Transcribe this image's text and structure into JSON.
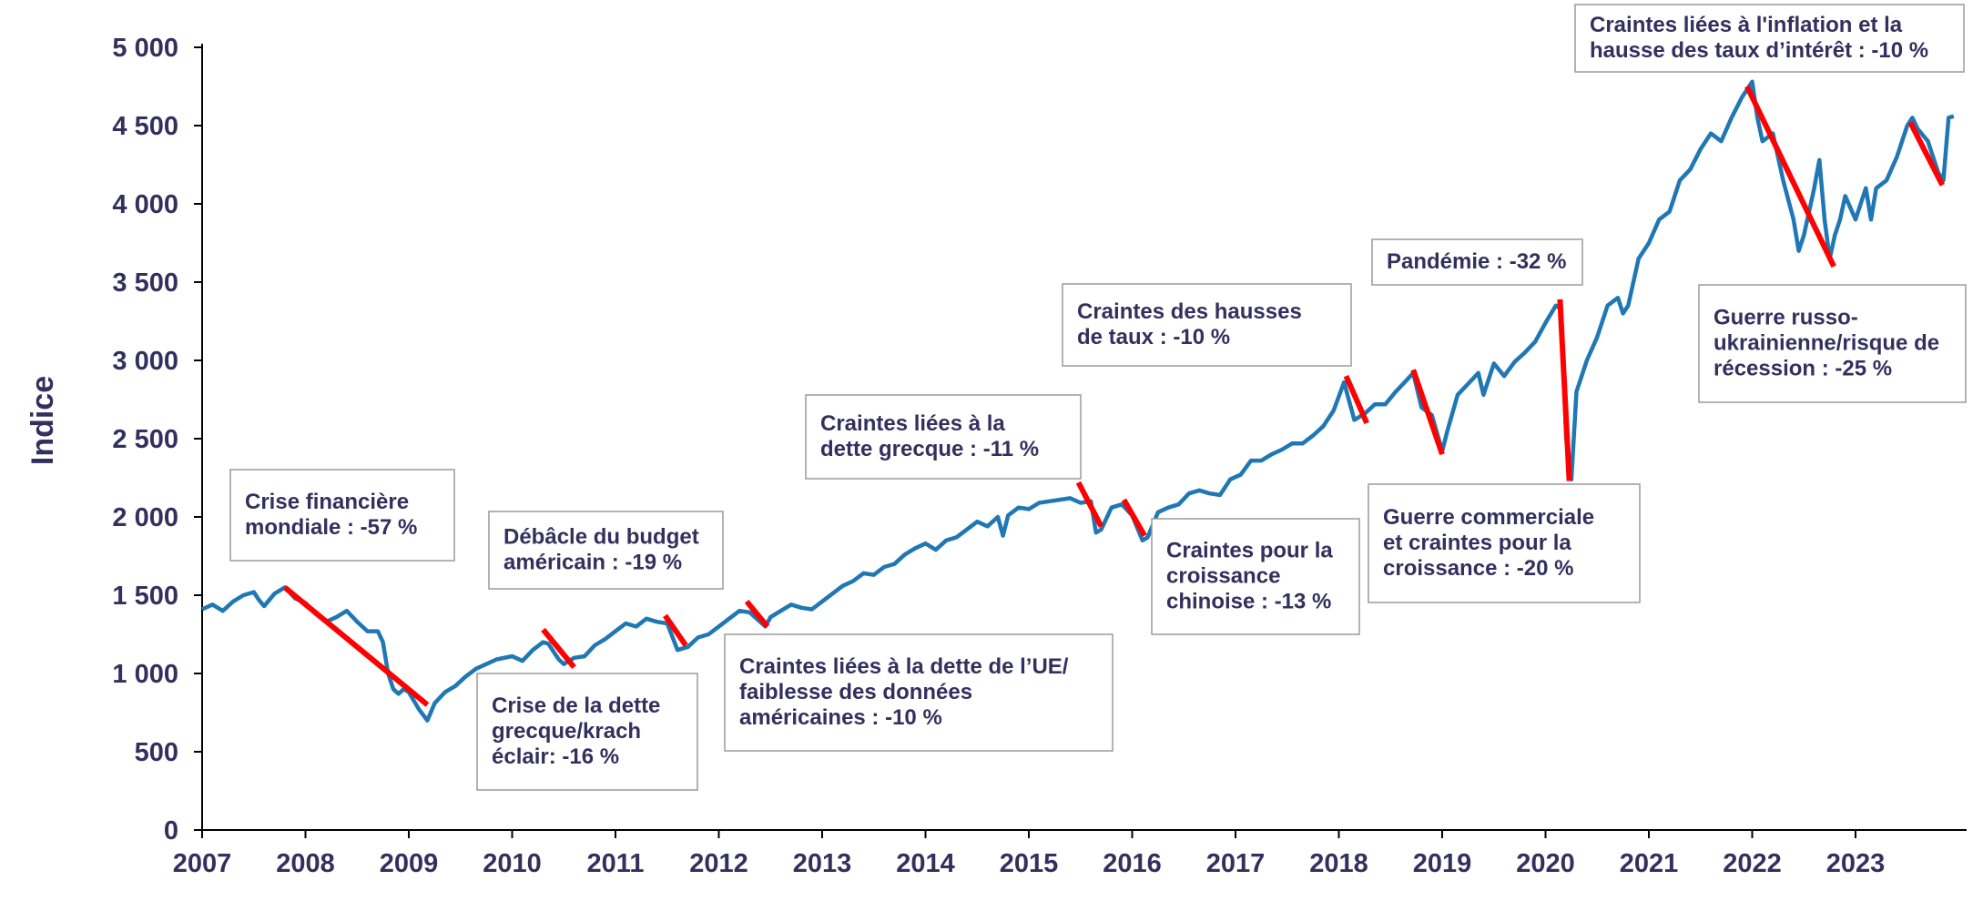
{
  "chart_data": {
    "type": "line",
    "ylabel": "Indice",
    "ylim": [
      0,
      5000
    ],
    "yticks": [
      0,
      500,
      1000,
      1500,
      2000,
      2500,
      3000,
      3500,
      4000,
      4500,
      5000
    ],
    "ytick_labels": [
      "0",
      "500",
      "1 000",
      "1 500",
      "2 000",
      "2 500",
      "3 000",
      "3 500",
      "4 000",
      "4 500",
      "5 000"
    ],
    "xlim": [
      2007.0,
      2023.95
    ],
    "xticks": [
      2007,
      2008,
      2009,
      2010,
      2011,
      2012,
      2013,
      2014,
      2015,
      2016,
      2017,
      2018,
      2019,
      2020,
      2021,
      2022,
      2023
    ],
    "xtick_labels": [
      "2007",
      "2008",
      "2009",
      "2010",
      "2011",
      "2012",
      "2013",
      "2014",
      "2015",
      "2016",
      "2017",
      "2018",
      "2019",
      "2020",
      "2021",
      "2022",
      "2023"
    ],
    "grid": false,
    "series": [
      {
        "color": "#1f77b4",
        "points": [
          [
            2007.0,
            1410
          ],
          [
            2007.1,
            1440
          ],
          [
            2007.2,
            1400
          ],
          [
            2007.3,
            1460
          ],
          [
            2007.4,
            1500
          ],
          [
            2007.5,
            1520
          ],
          [
            2007.55,
            1470
          ],
          [
            2007.6,
            1430
          ],
          [
            2007.7,
            1510
          ],
          [
            2007.8,
            1550
          ],
          [
            2007.9,
            1480
          ],
          [
            2008.0,
            1450
          ],
          [
            2008.1,
            1380
          ],
          [
            2008.2,
            1330
          ],
          [
            2008.3,
            1360
          ],
          [
            2008.4,
            1400
          ],
          [
            2008.5,
            1330
          ],
          [
            2008.6,
            1270
          ],
          [
            2008.7,
            1270
          ],
          [
            2008.75,
            1200
          ],
          [
            2008.8,
            1000
          ],
          [
            2008.85,
            900
          ],
          [
            2008.9,
            870
          ],
          [
            2008.95,
            900
          ],
          [
            2009.0,
            880
          ],
          [
            2009.1,
            770
          ],
          [
            2009.18,
            700
          ],
          [
            2009.25,
            810
          ],
          [
            2009.35,
            880
          ],
          [
            2009.45,
            920
          ],
          [
            2009.55,
            980
          ],
          [
            2009.65,
            1030
          ],
          [
            2009.75,
            1060
          ],
          [
            2009.85,
            1090
          ],
          [
            2010.0,
            1110
          ],
          [
            2010.1,
            1080
          ],
          [
            2010.2,
            1150
          ],
          [
            2010.3,
            1200
          ],
          [
            2010.35,
            1190
          ],
          [
            2010.45,
            1090
          ],
          [
            2010.5,
            1060
          ],
          [
            2010.6,
            1100
          ],
          [
            2010.7,
            1110
          ],
          [
            2010.8,
            1180
          ],
          [
            2010.9,
            1220
          ],
          [
            2011.0,
            1270
          ],
          [
            2011.1,
            1320
          ],
          [
            2011.2,
            1300
          ],
          [
            2011.3,
            1350
          ],
          [
            2011.4,
            1330
          ],
          [
            2011.5,
            1320
          ],
          [
            2011.6,
            1150
          ],
          [
            2011.7,
            1170
          ],
          [
            2011.8,
            1230
          ],
          [
            2011.9,
            1250
          ],
          [
            2012.0,
            1300
          ],
          [
            2012.1,
            1350
          ],
          [
            2012.2,
            1400
          ],
          [
            2012.3,
            1390
          ],
          [
            2012.4,
            1330
          ],
          [
            2012.45,
            1300
          ],
          [
            2012.5,
            1360
          ],
          [
            2012.6,
            1400
          ],
          [
            2012.7,
            1440
          ],
          [
            2012.8,
            1420
          ],
          [
            2012.9,
            1410
          ],
          [
            2013.0,
            1460
          ],
          [
            2013.1,
            1510
          ],
          [
            2013.2,
            1560
          ],
          [
            2013.3,
            1590
          ],
          [
            2013.4,
            1640
          ],
          [
            2013.5,
            1630
          ],
          [
            2013.6,
            1680
          ],
          [
            2013.7,
            1700
          ],
          [
            2013.8,
            1760
          ],
          [
            2013.9,
            1800
          ],
          [
            2014.0,
            1830
          ],
          [
            2014.1,
            1790
          ],
          [
            2014.2,
            1850
          ],
          [
            2014.3,
            1870
          ],
          [
            2014.4,
            1920
          ],
          [
            2014.5,
            1970
          ],
          [
            2014.6,
            1940
          ],
          [
            2014.7,
            2000
          ],
          [
            2014.75,
            1880
          ],
          [
            2014.8,
            2010
          ],
          [
            2014.9,
            2060
          ],
          [
            2015.0,
            2050
          ],
          [
            2015.1,
            2090
          ],
          [
            2015.2,
            2100
          ],
          [
            2015.3,
            2110
          ],
          [
            2015.4,
            2120
          ],
          [
            2015.5,
            2090
          ],
          [
            2015.6,
            2100
          ],
          [
            2015.65,
            1900
          ],
          [
            2015.7,
            1920
          ],
          [
            2015.8,
            2060
          ],
          [
            2015.9,
            2080
          ],
          [
            2016.0,
            2010
          ],
          [
            2016.1,
            1850
          ],
          [
            2016.15,
            1870
          ],
          [
            2016.25,
            2030
          ],
          [
            2016.35,
            2060
          ],
          [
            2016.45,
            2080
          ],
          [
            2016.55,
            2150
          ],
          [
            2016.65,
            2170
          ],
          [
            2016.75,
            2150
          ],
          [
            2016.85,
            2140
          ],
          [
            2016.95,
            2240
          ],
          [
            2017.05,
            2270
          ],
          [
            2017.15,
            2360
          ],
          [
            2017.25,
            2360
          ],
          [
            2017.35,
            2400
          ],
          [
            2017.45,
            2430
          ],
          [
            2017.55,
            2470
          ],
          [
            2017.65,
            2470
          ],
          [
            2017.75,
            2520
          ],
          [
            2017.85,
            2580
          ],
          [
            2017.95,
            2680
          ],
          [
            2018.05,
            2860
          ],
          [
            2018.15,
            2620
          ],
          [
            2018.25,
            2660
          ],
          [
            2018.35,
            2720
          ],
          [
            2018.45,
            2720
          ],
          [
            2018.55,
            2800
          ],
          [
            2018.65,
            2870
          ],
          [
            2018.72,
            2920
          ],
          [
            2018.8,
            2700
          ],
          [
            2018.9,
            2650
          ],
          [
            2019.0,
            2420
          ],
          [
            2019.05,
            2550
          ],
          [
            2019.15,
            2780
          ],
          [
            2019.25,
            2850
          ],
          [
            2019.35,
            2920
          ],
          [
            2019.4,
            2780
          ],
          [
            2019.5,
            2980
          ],
          [
            2019.6,
            2900
          ],
          [
            2019.7,
            2990
          ],
          [
            2019.8,
            3050
          ],
          [
            2019.9,
            3120
          ],
          [
            2020.0,
            3240
          ],
          [
            2020.1,
            3350
          ],
          [
            2020.15,
            3330
          ],
          [
            2020.2,
            2500
          ],
          [
            2020.25,
            2240
          ],
          [
            2020.3,
            2800
          ],
          [
            2020.4,
            3000
          ],
          [
            2020.5,
            3150
          ],
          [
            2020.6,
            3350
          ],
          [
            2020.7,
            3400
          ],
          [
            2020.75,
            3300
          ],
          [
            2020.8,
            3350
          ],
          [
            2020.9,
            3650
          ],
          [
            2021.0,
            3750
          ],
          [
            2021.1,
            3900
          ],
          [
            2021.2,
            3950
          ],
          [
            2021.3,
            4150
          ],
          [
            2021.4,
            4220
          ],
          [
            2021.5,
            4350
          ],
          [
            2021.6,
            4450
          ],
          [
            2021.7,
            4400
          ],
          [
            2021.8,
            4550
          ],
          [
            2021.9,
            4680
          ],
          [
            2022.0,
            4780
          ],
          [
            2022.05,
            4550
          ],
          [
            2022.1,
            4400
          ],
          [
            2022.2,
            4450
          ],
          [
            2022.3,
            4150
          ],
          [
            2022.4,
            3900
          ],
          [
            2022.45,
            3700
          ],
          [
            2022.5,
            3800
          ],
          [
            2022.6,
            4100
          ],
          [
            2022.65,
            4280
          ],
          [
            2022.7,
            3900
          ],
          [
            2022.75,
            3650
          ],
          [
            2022.8,
            3800
          ],
          [
            2022.85,
            3900
          ],
          [
            2022.9,
            4050
          ],
          [
            2023.0,
            3900
          ],
          [
            2023.1,
            4100
          ],
          [
            2023.15,
            3900
          ],
          [
            2023.2,
            4100
          ],
          [
            2023.3,
            4150
          ],
          [
            2023.4,
            4300
          ],
          [
            2023.5,
            4500
          ],
          [
            2023.55,
            4550
          ],
          [
            2023.6,
            4480
          ],
          [
            2023.7,
            4400
          ],
          [
            2023.8,
            4200
          ],
          [
            2023.85,
            4150
          ],
          [
            2023.9,
            4550
          ],
          [
            2023.95,
            4560
          ]
        ]
      }
    ],
    "drawdowns": [
      [
        [
          2007.8,
          1550
        ],
        [
          2009.18,
          800
        ]
      ],
      [
        [
          2010.3,
          1280
        ],
        [
          2010.6,
          1040
        ]
      ],
      [
        [
          2011.48,
          1370
        ],
        [
          2011.68,
          1180
        ]
      ],
      [
        [
          2012.27,
          1460
        ],
        [
          2012.47,
          1300
        ]
      ],
      [
        [
          2015.48,
          2220
        ],
        [
          2015.7,
          1940
        ]
      ],
      [
        [
          2015.92,
          2110
        ],
        [
          2016.12,
          1880
        ]
      ],
      [
        [
          2018.07,
          2900
        ],
        [
          2018.27,
          2600
        ]
      ],
      [
        [
          2018.72,
          2940
        ],
        [
          2019.0,
          2400
        ]
      ],
      [
        [
          2020.14,
          3390
        ],
        [
          2020.23,
          2230
        ]
      ],
      [
        [
          2021.95,
          4750
        ],
        [
          2022.79,
          3600
        ]
      ],
      [
        [
          2023.53,
          4520
        ],
        [
          2023.84,
          4120
        ]
      ]
    ],
    "drawdown_color": "#ff0000",
    "annotations": [
      {
        "lines": [
          "Crise financière",
          "mondiale : -57 %"
        ]
      },
      {
        "lines": [
          "Débâcle du budget",
          "américain : -19 %"
        ]
      },
      {
        "lines": [
          "Crise de la dette",
          "grecque/krach",
          "éclair: -16 %"
        ]
      },
      {
        "lines": [
          "Craintes liées à la dette de l’UE/",
          "faiblesse des données",
          "américaines : -10 %"
        ]
      },
      {
        "lines": [
          "Craintes liées à la",
          "dette grecque : -11 %"
        ]
      },
      {
        "lines": [
          "Craintes des hausses",
          "de taux : -10 %"
        ]
      },
      {
        "lines": [
          "Craintes pour la",
          "croissance",
          "chinoise : -13 %"
        ]
      },
      {
        "lines": [
          "Pandémie : -32 %"
        ]
      },
      {
        "lines": [
          "Guerre commerciale",
          "et craintes pour la",
          "croissance : -20 %"
        ]
      },
      {
        "lines": [
          "Craintes liées à l'inflation et la",
          "hausse des taux d’intérêt : -10 %"
        ]
      },
      {
        "lines": [
          "Guerre russo-",
          "ukrainienne/risque de",
          "récession : -25 %"
        ]
      }
    ]
  }
}
